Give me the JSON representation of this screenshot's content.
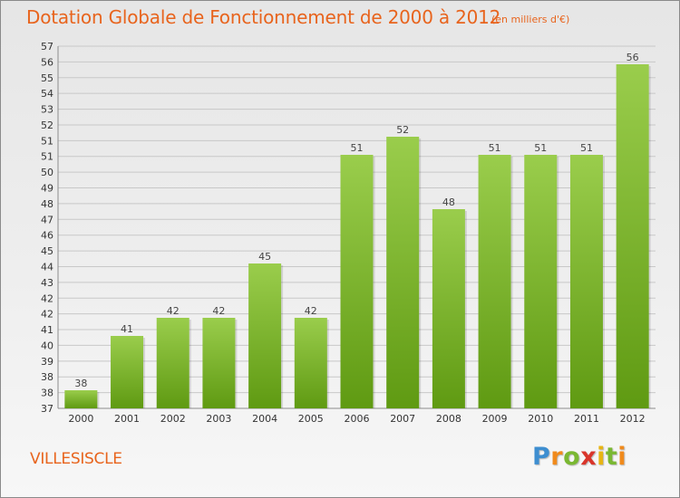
{
  "header": {
    "title": "Dotation Globale de Fonctionnement de 2000 à 2012",
    "subtitle": "(en milliers d'€)"
  },
  "commune": "VILLESISCLE",
  "logo": {
    "text": "Proxiti",
    "letters": [
      "P",
      "r",
      "o",
      "x",
      "i",
      "t",
      "i"
    ]
  },
  "colors": {
    "title": "#e8641d",
    "bar_light": "#9acd4c",
    "bar_dark": "#5f9a12",
    "grid": "#c8c8c8"
  },
  "chart_data": {
    "type": "bar",
    "categories": [
      "2000",
      "2001",
      "2002",
      "2003",
      "2004",
      "2005",
      "2006",
      "2007",
      "2008",
      "2009",
      "2010",
      "2011",
      "2012"
    ],
    "values": [
      38,
      41,
      42,
      42,
      45,
      42,
      51,
      52,
      48,
      51,
      51,
      51,
      56
    ],
    "data_labels": [
      "38",
      "41",
      "42",
      "42",
      "45",
      "42",
      "51",
      "52",
      "48",
      "51",
      "51",
      "51",
      "56"
    ],
    "y_tick_labels": [
      "37",
      "38",
      "38",
      "39",
      "40",
      "41",
      "42",
      "42",
      "43",
      "44",
      "45",
      "46",
      "47",
      "48",
      "49",
      "50",
      "51",
      "51",
      "52",
      "53",
      "54",
      "55",
      "56",
      "57"
    ],
    "ylim": [
      37,
      57
    ],
    "grid": true,
    "legend": "none"
  }
}
